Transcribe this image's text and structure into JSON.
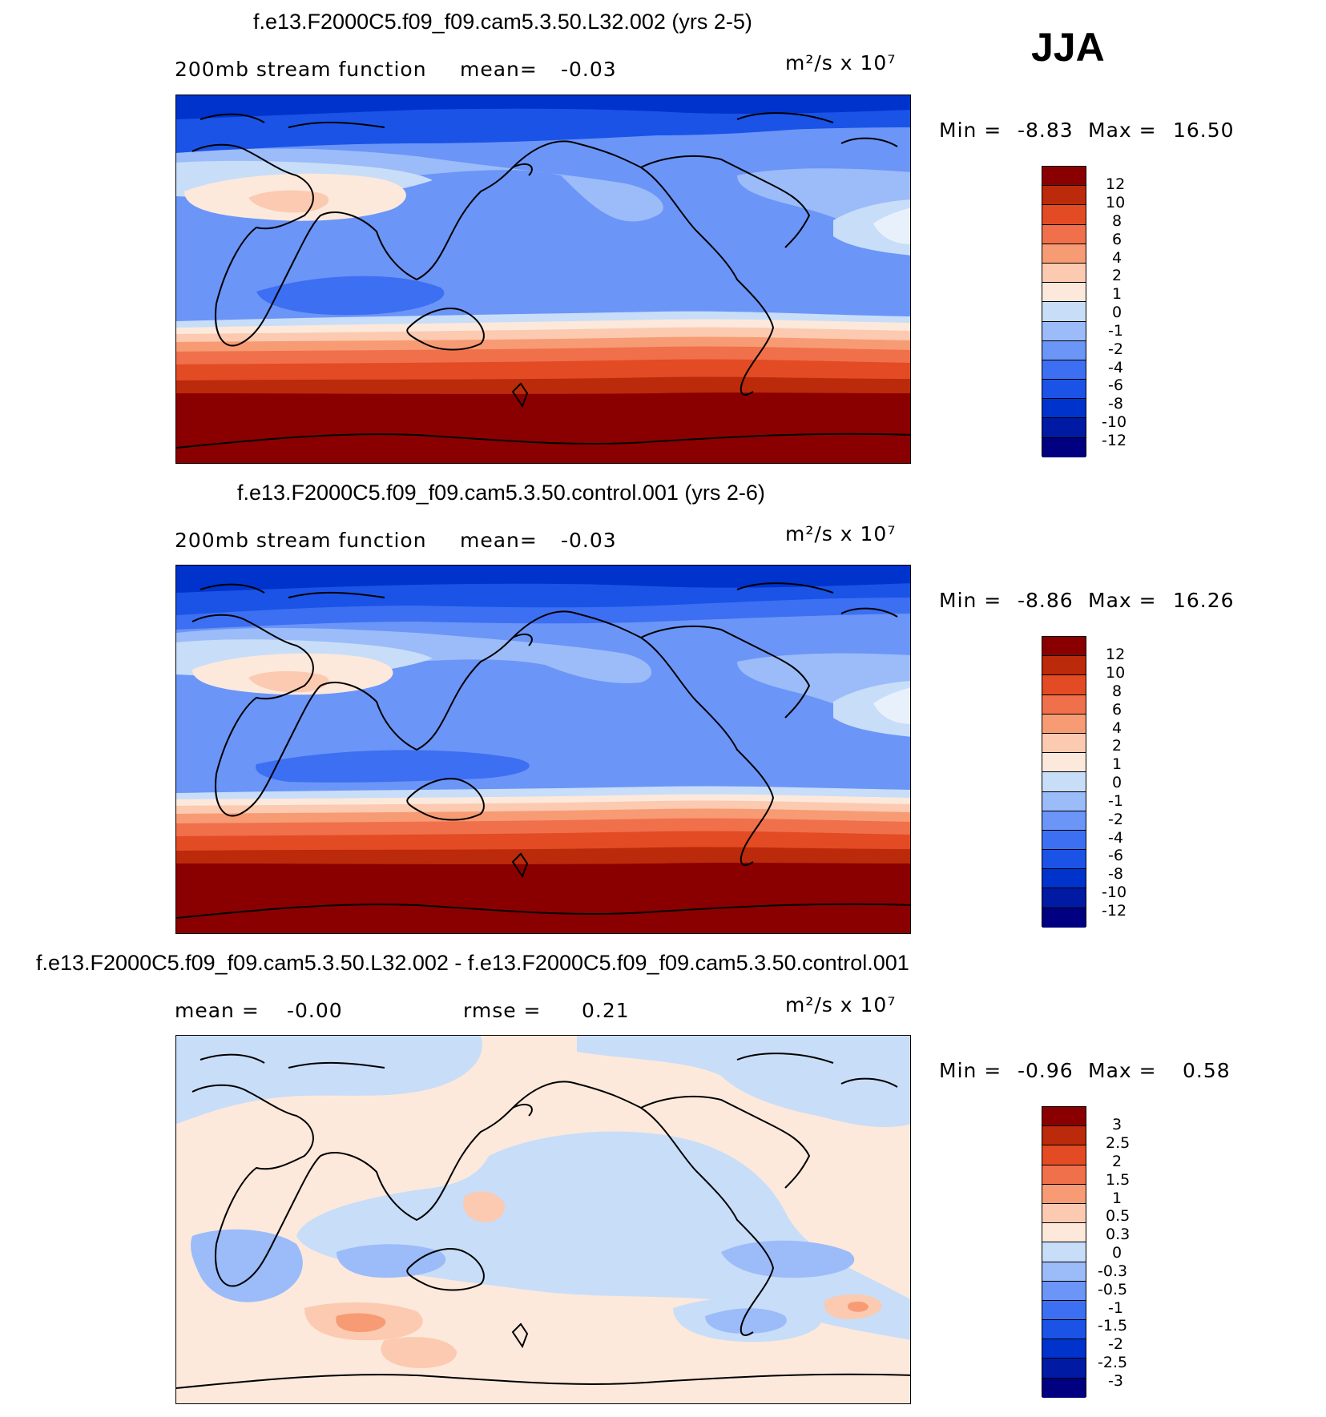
{
  "season": "JJA",
  "colors": {
    "fifteen": [
      "#000080",
      "#001aa3",
      "#0033cc",
      "#1a53e6",
      "#3d6ff2",
      "#6b95f7",
      "#9bbcf9",
      "#c8ddf8",
      "#fce9dc",
      "#fbcab0",
      "#f79b74",
      "#f0704c",
      "#e34b24",
      "#bb2a0a",
      "#8a0000"
    ],
    "fifteen_meaning": "lowest to highest contour class"
  },
  "panels": [
    {
      "title": "f.e13.F2000C5.f09_f09.cam5.3.50.L32.002 (yrs 2-5)",
      "left_label": "200mb stream function",
      "stat1_label": "mean=",
      "stat1_value": "-0.03",
      "stat2_label": "",
      "stat2_value": "",
      "units": "m²/s x 10⁷",
      "min_label": "Min =",
      "min_value": "-8.83",
      "max_label": "Max =",
      "max_value": "16.50",
      "colorbar_labels": [
        "12",
        "10",
        "8",
        "6",
        "4",
        "2",
        "1",
        "0",
        "-1",
        "-2",
        "-4",
        "-6",
        "-8",
        "-10",
        "-12"
      ]
    },
    {
      "title": "f.e13.F2000C5.f09_f09.cam5.3.50.control.001 (yrs 2-6)",
      "left_label": "200mb stream function",
      "stat1_label": "mean=",
      "stat1_value": "-0.03",
      "stat2_label": "",
      "stat2_value": "",
      "units": "m²/s x 10⁷",
      "min_label": "Min =",
      "min_value": "-8.86",
      "max_label": "Max =",
      "max_value": "16.26",
      "colorbar_labels": [
        "12",
        "10",
        "8",
        "6",
        "4",
        "2",
        "1",
        "0",
        "-1",
        "-2",
        "-4",
        "-6",
        "-8",
        "-10",
        "-12"
      ]
    },
    {
      "title": "f.e13.F2000C5.f09_f09.cam5.3.50.L32.002 - f.e13.F2000C5.f09_f09.cam5.3.50.control.001",
      "left_label": "",
      "stat1_label": "mean =",
      "stat1_value": "-0.00",
      "stat2_label": "rmse =",
      "stat2_value": "0.21",
      "units": "m²/s x 10⁷",
      "min_label": "Min =",
      "min_value": "-0.96",
      "max_label": "Max =",
      "max_value": "0.58",
      "colorbar_labels": [
        "3",
        "2.5",
        "2",
        "1.5",
        "1",
        "0.5",
        "0.3",
        "0",
        "-0.3",
        "-0.5",
        "-1",
        "-1.5",
        "-2",
        "-2.5",
        "-3"
      ]
    }
  ]
}
